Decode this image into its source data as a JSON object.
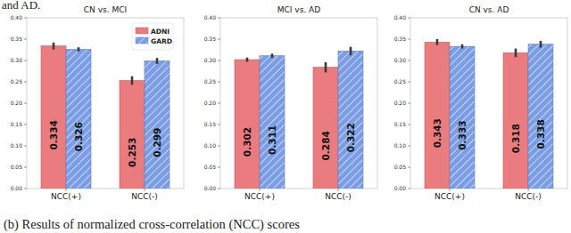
{
  "preceding_text": "and AD.",
  "caption": "(b) Results of normalized cross-correlation (NCC) scores",
  "chart_data": [
    {
      "type": "bar",
      "title": "CN vs. MCI",
      "categories": [
        "NCC(+)",
        "NCC(-)"
      ],
      "series": [
        {
          "name": "ADNI",
          "color": "#ea7b7f",
          "values": [
            0.334,
            0.253
          ],
          "errors": [
            0.008,
            0.01
          ]
        },
        {
          "name": "GARD",
          "color": "#7b9de6",
          "values": [
            0.326,
            0.299
          ],
          "errors": [
            0.005,
            0.007
          ]
        }
      ],
      "ylim": [
        0,
        0.4
      ],
      "yticks": [
        {
          "value": 0,
          "label": "0.00"
        },
        {
          "value": 0.05,
          "label": "0.05"
        },
        {
          "value": 0.1,
          "label": "0.10"
        },
        {
          "value": 0.15,
          "label": "0.15"
        },
        {
          "value": 0.2,
          "label": "0.20"
        },
        {
          "value": 0.25,
          "label": "0.25"
        },
        {
          "value": 0.3,
          "label": "0.30"
        },
        {
          "value": 0.35,
          "label": "0.35"
        },
        {
          "value": 0.4,
          "label": "0.40"
        }
      ],
      "grid": false,
      "data_labels": true,
      "legend": "upper right"
    },
    {
      "type": "bar",
      "title": "MCI vs. AD",
      "categories": [
        "NCC(+)",
        "NCC(-)"
      ],
      "series": [
        {
          "name": "ADNI",
          "color": "#ea7b7f",
          "values": [
            0.302,
            0.284
          ],
          "errors": [
            0.005,
            0.012
          ]
        },
        {
          "name": "GARD",
          "color": "#7b9de6",
          "values": [
            0.311,
            0.322
          ],
          "errors": [
            0.005,
            0.01
          ]
        }
      ],
      "ylim": [
        0,
        0.4
      ],
      "yticks": [
        {
          "value": 0,
          "label": "0.00"
        },
        {
          "value": 0.05,
          "label": "0.05"
        },
        {
          "value": 0.1,
          "label": "0.10"
        },
        {
          "value": 0.15,
          "label": "0.15"
        },
        {
          "value": 0.2,
          "label": "0.20"
        },
        {
          "value": 0.25,
          "label": "0.25"
        },
        {
          "value": 0.3,
          "label": "0.30"
        },
        {
          "value": 0.35,
          "label": "0.35"
        },
        {
          "value": 0.4,
          "label": "0.40"
        }
      ],
      "grid": false,
      "data_labels": true
    },
    {
      "type": "bar",
      "title": "CN vs. AD",
      "categories": [
        "NCC(+)",
        "NCC(-)"
      ],
      "series": [
        {
          "name": "ADNI",
          "color": "#ea7b7f",
          "values": [
            0.343,
            0.318
          ],
          "errors": [
            0.007,
            0.01
          ]
        },
        {
          "name": "GARD",
          "color": "#7b9de6",
          "values": [
            0.333,
            0.338
          ],
          "errors": [
            0.005,
            0.008
          ]
        }
      ],
      "ylim": [
        0,
        0.4
      ],
      "yticks": [
        {
          "value": 0,
          "label": "0.00"
        },
        {
          "value": 0.05,
          "label": "0.05"
        },
        {
          "value": 0.1,
          "label": "0.10"
        },
        {
          "value": 0.15,
          "label": "0.15"
        },
        {
          "value": 0.2,
          "label": "0.20"
        },
        {
          "value": 0.25,
          "label": "0.25"
        },
        {
          "value": 0.3,
          "label": "0.30"
        },
        {
          "value": 0.35,
          "label": "0.35"
        },
        {
          "value": 0.4,
          "label": "0.40"
        }
      ],
      "grid": false,
      "data_labels": true
    }
  ]
}
